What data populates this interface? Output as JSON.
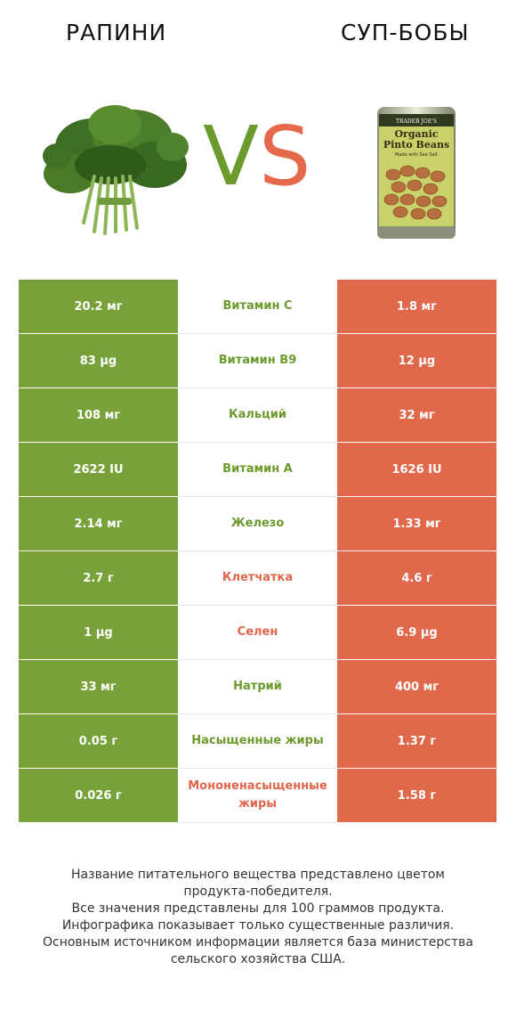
{
  "header": {
    "left_title": "РАПИНИ",
    "right_title": "СУП-БОБЫ",
    "vs_v": "V",
    "vs_s": "S"
  },
  "colors": {
    "left": "#78a239",
    "right": "#e1694b"
  },
  "images": {
    "left": "rapini-vegetable-image",
    "right": "pinto-bean-soup-can-image",
    "can_text": [
      "TRADER JOE'S",
      "Organic",
      "Pinto Beans",
      "Made with Sea Salt"
    ]
  },
  "rows": [
    {
      "left": "20.2 мг",
      "name": "Витамин C",
      "right": "1.8 мг",
      "winner": "left"
    },
    {
      "left": "83 µg",
      "name": "Витамин B9",
      "right": "12 µg",
      "winner": "left"
    },
    {
      "left": "108 мг",
      "name": "Кальций",
      "right": "32 мг",
      "winner": "left"
    },
    {
      "left": "2622 IU",
      "name": "Витамин A",
      "right": "1626 IU",
      "winner": "left"
    },
    {
      "left": "2.14 мг",
      "name": "Железо",
      "right": "1.33 мг",
      "winner": "left"
    },
    {
      "left": "2.7 г",
      "name": "Клетчатка",
      "right": "4.6 г",
      "winner": "right"
    },
    {
      "left": "1 µg",
      "name": "Селен",
      "right": "6.9 µg",
      "winner": "right"
    },
    {
      "left": "33 мг",
      "name": "Натрий",
      "right": "400 мг",
      "winner": "left"
    },
    {
      "left": "0.05 г",
      "name": "Насыщенные жиры",
      "right": "1.37 г",
      "winner": "left"
    },
    {
      "left": "0.026 г",
      "name": "Мононенасыщенные жиры",
      "right": "1.58 г",
      "winner": "right"
    }
  ],
  "footer": [
    "Название питательного вещества представлено цветом",
    "продукта-победителя.",
    "Все значения представлены для 100 граммов продукта.",
    "Инфографика показывает только существенные различия.",
    "Основным источником информации является база министерства",
    "сельского хозяйства США."
  ]
}
